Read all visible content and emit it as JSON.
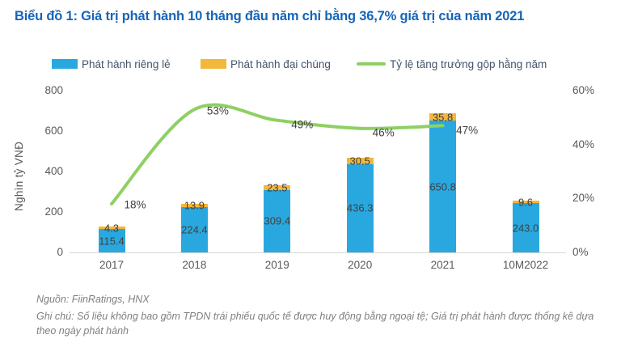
{
  "title": "Biểu đồ 1: Giá trị phát hành 10 tháng đầu năm chỉ bằng 36,7% giá trị của năm 2021",
  "chart_data": {
    "type": "bar",
    "subtype": "stacked-bar-with-line-combo",
    "categories": [
      "2017",
      "2018",
      "2019",
      "2020",
      "2021",
      "10M2022"
    ],
    "series": [
      {
        "name": "Phát hành riêng lẻ",
        "type": "bar",
        "color": "#29A8E0",
        "values": [
          115.4,
          224.4,
          309.4,
          436.3,
          650.8,
          243.0
        ]
      },
      {
        "name": "Phát hành đại chúng",
        "type": "bar",
        "color": "#F3B73B",
        "values": [
          4.3,
          13.9,
          23.5,
          30.5,
          35.8,
          9.6
        ]
      },
      {
        "name": "Tỷ lệ tăng trưởng gộp hằng năm",
        "type": "line",
        "color": "#8ED063",
        "unit": "%",
        "values": [
          18,
          53,
          49,
          46,
          47,
          null
        ]
      }
    ],
    "stacked": true,
    "data_labels": true,
    "ylabel_left": "Nghìn tỷ VNĐ",
    "yticks_left": [
      0,
      200,
      400,
      600,
      800
    ],
    "ylim_left": [
      0,
      800
    ],
    "yticks_right": [
      "0%",
      "20%",
      "40%",
      "60%"
    ],
    "ylim_right_percent": [
      0,
      60
    ],
    "grid": false,
    "legend_position": "top"
  },
  "footer": {
    "source": "Nguồn: FiinRatings, HNX",
    "note": "Ghi chú: Số liệu không bao gồm TPDN trái phiếu quốc tế được huy động bằng ngoại tệ; Giá trị phát hành được thống kê dựa theo ngày phát hành"
  },
  "colors": {
    "title": "#1565B8",
    "bar_private": "#29A8E0",
    "bar_public": "#F3B73B",
    "growth_line": "#8ED063",
    "legend_text": "#44546A",
    "axis_text": "#595959",
    "data_label_text": "#404040",
    "axis_line": "#D6D6D6"
  }
}
